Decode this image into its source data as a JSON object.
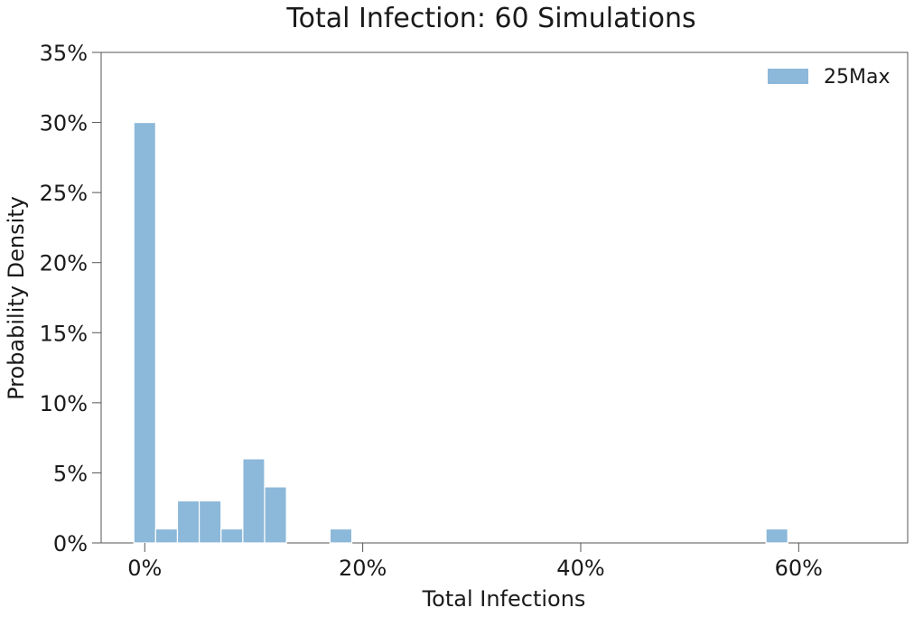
{
  "chart_data": {
    "type": "bar",
    "title": "Total Infection: 60 Simulations",
    "xlabel": "Total Infections",
    "ylabel": "Probability Density",
    "xlim": [
      -4,
      70
    ],
    "ylim": [
      0,
      35
    ],
    "x_ticks": [
      0,
      20,
      40,
      60
    ],
    "x_tick_labels": [
      "0%",
      "20%",
      "40%",
      "60%"
    ],
    "y_ticks": [
      0,
      5,
      10,
      15,
      20,
      25,
      30,
      35
    ],
    "y_tick_labels": [
      "0%",
      "5%",
      "10%",
      "15%",
      "20%",
      "25%",
      "30%",
      "35%"
    ],
    "bin_width": 2,
    "grid": false,
    "legend_position": "top-right",
    "series": [
      {
        "name": "25Max",
        "color": "#8cb8d9",
        "bins": [
          {
            "x_start": -1,
            "value": 30
          },
          {
            "x_start": 1,
            "value": 1
          },
          {
            "x_start": 3,
            "value": 3
          },
          {
            "x_start": 5,
            "value": 3
          },
          {
            "x_start": 7,
            "value": 1
          },
          {
            "x_start": 9,
            "value": 6
          },
          {
            "x_start": 11,
            "value": 4
          },
          {
            "x_start": 17,
            "value": 1
          },
          {
            "x_start": 57,
            "value": 1
          }
        ]
      }
    ]
  }
}
